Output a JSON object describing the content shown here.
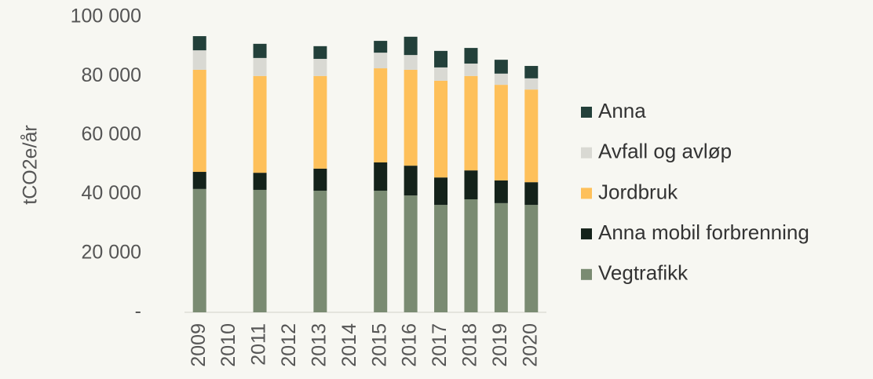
{
  "chart_data": {
    "type": "stacked_bar",
    "y_label": "tCO2e/år",
    "categories": [
      "2009",
      "2010",
      "2011",
      "2012",
      "2013",
      "2014",
      "2015",
      "2016",
      "2017",
      "2018",
      "2019",
      "2020"
    ],
    "series": [
      {
        "name": "Vegtrafikk",
        "color": "#7a8b72",
        "values": [
          41800,
          null,
          41500,
          null,
          41200,
          null,
          41200,
          39600,
          36400,
          38300,
          37000,
          36400
        ]
      },
      {
        "name": "Anna mobil forbrenning",
        "color": "#14221a",
        "values": [
          5800,
          null,
          5800,
          null,
          7500,
          null,
          9600,
          10100,
          9300,
          9800,
          7700,
          7700
        ]
      },
      {
        "name": "Jordbruk",
        "color": "#fec05a",
        "values": [
          34600,
          null,
          32800,
          null,
          31400,
          null,
          31900,
          32500,
          32800,
          32000,
          32400,
          31400
        ]
      },
      {
        "name": "Avfall og avløp",
        "color": "#d9d9d3",
        "values": [
          6600,
          null,
          6100,
          null,
          5800,
          null,
          5300,
          5000,
          4500,
          4200,
          3800,
          3800
        ]
      },
      {
        "name": "Anna",
        "color": "#23403a",
        "values": [
          4800,
          null,
          4800,
          null,
          4300,
          null,
          4000,
          6200,
          5600,
          5300,
          4700,
          4200
        ]
      }
    ],
    "ylim": [
      0,
      100000
    ],
    "yticks": [
      {
        "value": 0,
        "label": "-"
      },
      {
        "value": 20000,
        "label": "20 000"
      },
      {
        "value": 40000,
        "label": "40 000"
      },
      {
        "value": 60000,
        "label": "60 000"
      },
      {
        "value": 80000,
        "label": "80 000"
      },
      {
        "value": 100000,
        "label": "100 000"
      }
    ],
    "legend": "right"
  }
}
